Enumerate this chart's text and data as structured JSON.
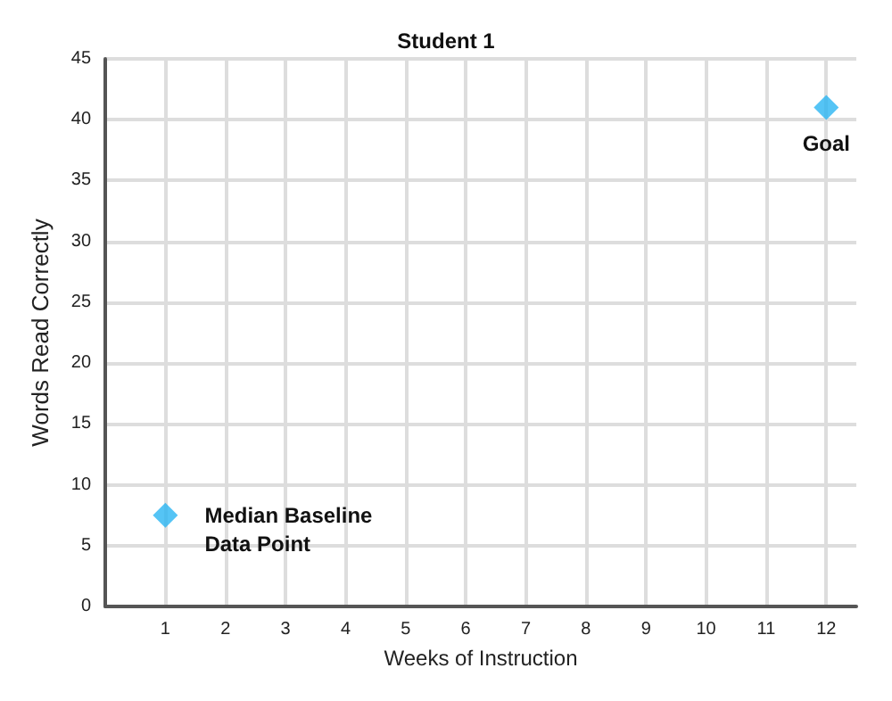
{
  "chart_data": {
    "type": "scatter",
    "title": "Student 1",
    "xlabel": "Weeks of Instruction",
    "ylabel": "Words Read Correctly",
    "x": [
      1,
      12
    ],
    "values": [
      7.5,
      41
    ],
    "color": "#2bb5f2",
    "marker": "diamond",
    "grid": true,
    "xlim": [
      0,
      12.5
    ],
    "xticks": [
      1,
      2,
      3,
      4,
      5,
      6,
      7,
      8,
      9,
      10,
      11,
      12
    ],
    "ylim": [
      0,
      45
    ],
    "yticks": [
      0,
      5,
      10,
      15,
      20,
      25,
      30,
      35,
      40,
      45
    ],
    "annotations": [
      {
        "text": "Median Baseline\nData Point",
        "x": 1,
        "y": 7.5
      },
      {
        "text": "Goal",
        "x": 12,
        "y": 41
      }
    ]
  }
}
